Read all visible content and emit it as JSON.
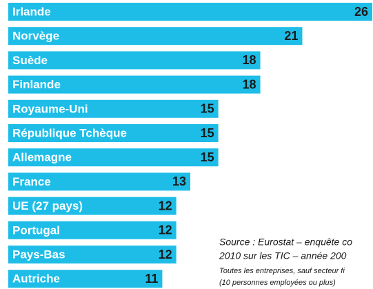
{
  "chart_data": {
    "type": "bar",
    "orientation": "horizontal",
    "color": "#1ebde8",
    "categories": [
      "Irlande",
      "Norvège",
      "Suède",
      "Finlande",
      "Royaume-Uni",
      "République Tchèque",
      "Allemagne",
      "France",
      "UE (27 pays)",
      "Portugal",
      "Pays-Bas",
      "Autriche"
    ],
    "values": [
      26,
      21,
      18,
      18,
      15,
      15,
      15,
      13,
      12,
      12,
      12,
      11
    ],
    "source": [
      "Source : Eurostat – enquête co",
      "2010 sur les TIC – année 200"
    ],
    "notes": [
      "Toutes les entreprises, sauf secteur fi",
      "(10 personnes employées ou plus)"
    ]
  }
}
